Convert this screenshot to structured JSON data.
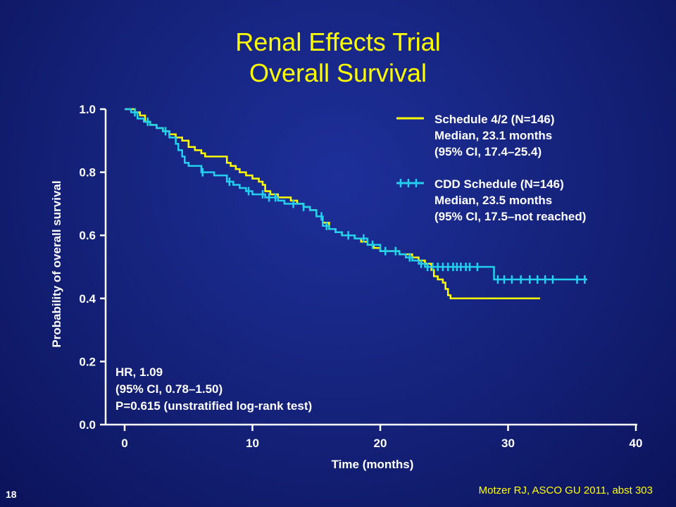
{
  "slide": {
    "title_line1": "Renal Effects Trial",
    "title_line2": "Overall Survival",
    "number": "18",
    "citation": "Motzer RJ, ASCO GU 2011, abst 303",
    "colors": {
      "background": "#16247e",
      "title": "#ffff00",
      "text": "#ffffff"
    }
  },
  "chart_data": {
    "type": "line",
    "title": "",
    "xlabel": "Time (months)",
    "ylabel": "Probability of overall survival",
    "xlim": [
      0,
      40
    ],
    "ylim": [
      0,
      1
    ],
    "xticks": [
      0,
      10,
      20,
      30,
      40
    ],
    "yticks": [
      "0.0",
      "0.2",
      "0.4",
      "0.6",
      "0.8",
      "1.0"
    ],
    "grid": false,
    "legend_position": "top-right",
    "series": [
      {
        "name": "Schedule 4/2 (N=146)",
        "legend_lines": [
          "Schedule 4/2 (N=146)",
          "Median, 23.1 months",
          "(95% CI, 17.4–25.4)"
        ],
        "color": "#ffff00",
        "marker": "none",
        "points": [
          [
            0,
            1.0
          ],
          [
            0.5,
            1.0
          ],
          [
            0.8,
            0.99
          ],
          [
            1.2,
            0.98
          ],
          [
            1.6,
            0.96
          ],
          [
            2.0,
            0.95
          ],
          [
            2.5,
            0.94
          ],
          [
            3.0,
            0.93
          ],
          [
            3.5,
            0.92
          ],
          [
            4.0,
            0.91
          ],
          [
            4.5,
            0.9
          ],
          [
            5.0,
            0.88
          ],
          [
            5.5,
            0.87
          ],
          [
            6.0,
            0.86
          ],
          [
            6.3,
            0.85
          ],
          [
            7.6,
            0.85
          ],
          [
            8.0,
            0.83
          ],
          [
            8.3,
            0.82
          ],
          [
            8.7,
            0.81
          ],
          [
            9.0,
            0.8
          ],
          [
            9.5,
            0.79
          ],
          [
            10.0,
            0.78
          ],
          [
            10.5,
            0.77
          ],
          [
            10.8,
            0.76
          ],
          [
            11.0,
            0.74
          ],
          [
            11.4,
            0.73
          ],
          [
            12.0,
            0.72
          ],
          [
            13.0,
            0.71
          ],
          [
            13.5,
            0.7
          ],
          [
            14.0,
            0.69
          ],
          [
            14.5,
            0.68
          ],
          [
            15.0,
            0.66
          ],
          [
            15.5,
            0.64
          ],
          [
            16.0,
            0.62
          ],
          [
            16.5,
            0.61
          ],
          [
            17.0,
            0.6
          ],
          [
            18.0,
            0.59
          ],
          [
            18.5,
            0.58
          ],
          [
            19.0,
            0.57
          ],
          [
            19.5,
            0.56
          ],
          [
            20.0,
            0.55
          ],
          [
            21.0,
            0.55
          ],
          [
            21.5,
            0.54
          ],
          [
            22.5,
            0.53
          ],
          [
            23.0,
            0.52
          ],
          [
            23.5,
            0.51
          ],
          [
            24.0,
            0.49
          ],
          [
            24.2,
            0.47
          ],
          [
            24.5,
            0.46
          ],
          [
            24.9,
            0.45
          ],
          [
            25.1,
            0.43
          ],
          [
            25.3,
            0.41
          ],
          [
            25.5,
            0.4
          ],
          [
            32.5,
            0.4
          ]
        ]
      },
      {
        "name": "CDD Schedule (N=146)",
        "legend_lines": [
          "CDD Schedule (N=146)",
          "Median, 23.5 months",
          "(95% CI, 17.5–not reached)"
        ],
        "color": "#22d0ee",
        "marker": "censor-tick",
        "points": [
          [
            0,
            1.0
          ],
          [
            0.5,
            0.99
          ],
          [
            1.0,
            0.97
          ],
          [
            1.5,
            0.96
          ],
          [
            2.0,
            0.95
          ],
          [
            2.5,
            0.94
          ],
          [
            3.0,
            0.93
          ],
          [
            3.5,
            0.91
          ],
          [
            4.0,
            0.89
          ],
          [
            4.2,
            0.87
          ],
          [
            4.5,
            0.85
          ],
          [
            4.7,
            0.83
          ],
          [
            5.0,
            0.82
          ],
          [
            5.5,
            0.82
          ],
          [
            6.0,
            0.8
          ],
          [
            6.5,
            0.8
          ],
          [
            7.0,
            0.79
          ],
          [
            7.5,
            0.79
          ],
          [
            8.0,
            0.77
          ],
          [
            8.5,
            0.76
          ],
          [
            9.0,
            0.75
          ],
          [
            9.5,
            0.74
          ],
          [
            10.0,
            0.73
          ],
          [
            10.5,
            0.73
          ],
          [
            11.0,
            0.72
          ],
          [
            11.5,
            0.72
          ],
          [
            12.0,
            0.71
          ],
          [
            12.5,
            0.7
          ],
          [
            13.0,
            0.7
          ],
          [
            14.0,
            0.69
          ],
          [
            14.5,
            0.68
          ],
          [
            15.0,
            0.66
          ],
          [
            15.5,
            0.63
          ],
          [
            16.0,
            0.62
          ],
          [
            16.5,
            0.61
          ],
          [
            17.0,
            0.6
          ],
          [
            18.0,
            0.59
          ],
          [
            19.0,
            0.57
          ],
          [
            20.0,
            0.55
          ],
          [
            21.0,
            0.55
          ],
          [
            21.5,
            0.54
          ],
          [
            22.0,
            0.53
          ],
          [
            22.5,
            0.52
          ],
          [
            23.0,
            0.51
          ],
          [
            23.5,
            0.5
          ],
          [
            28.8,
            0.5
          ],
          [
            28.9,
            0.46
          ],
          [
            36.2,
            0.46
          ]
        ],
        "censor_times": [
          0.8,
          1.8,
          3.2,
          6.1,
          8.2,
          9.7,
          10.8,
          11.3,
          11.8,
          13.2,
          14.0,
          15.4,
          15.8,
          17.5,
          18.7,
          19.4,
          20.4,
          21.2,
          22.3,
          23.2,
          23.7,
          24.1,
          24.5,
          24.9,
          25.3,
          25.7,
          26.0,
          26.3,
          26.7,
          27.0,
          27.6,
          29.2,
          29.7,
          30.3,
          31.0,
          31.7,
          32.3,
          32.9,
          33.5,
          35.4,
          36.0
        ]
      }
    ],
    "annotation": [
      "HR, 1.09",
      "(95% CI, 0.78–1.50)",
      "P=0.615 (unstratified log-rank test)"
    ]
  }
}
